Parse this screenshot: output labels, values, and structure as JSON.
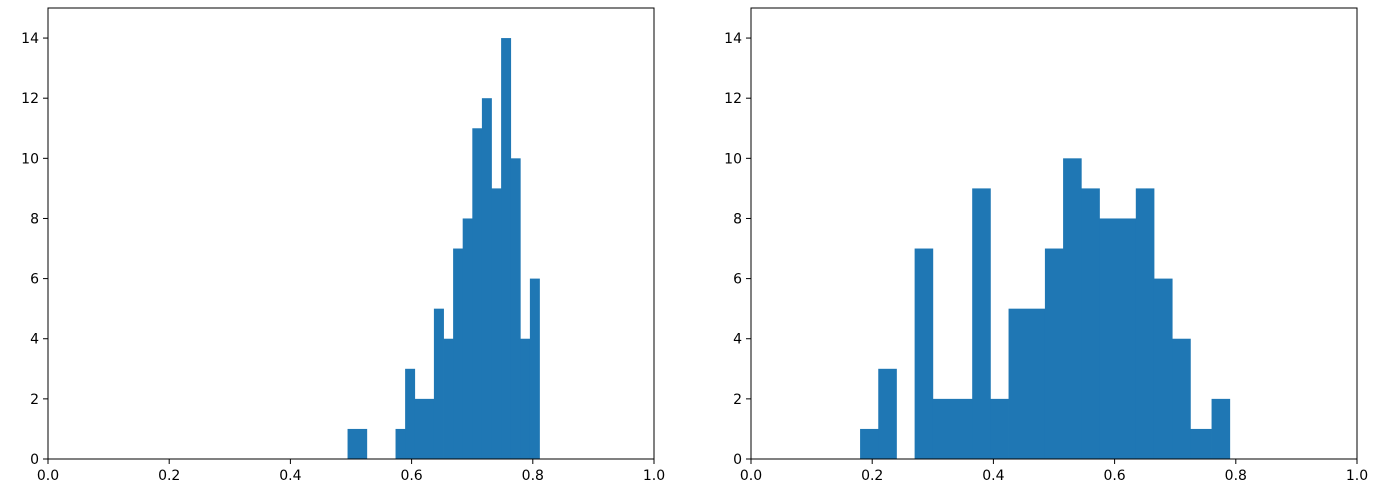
{
  "colors": {
    "bar": "#1f77b4",
    "axis": "#000000",
    "background": "#ffffff"
  },
  "chart_data": [
    {
      "type": "histogram",
      "xlim": [
        0.0,
        1.0
      ],
      "ylim": [
        0,
        15
      ],
      "xticks": [
        "0.0",
        "0.2",
        "0.4",
        "0.6",
        "0.8",
        "1.0"
      ],
      "yticks": [
        "0",
        "2",
        "4",
        "6",
        "8",
        "10",
        "12",
        "14"
      ],
      "grid": false,
      "bins": [
        {
          "x0": 0.4943,
          "x1": 0.526,
          "count": 1
        },
        {
          "x0": 0.5735,
          "x1": 0.5893,
          "count": 1
        },
        {
          "x0": 0.5893,
          "x1": 0.6051,
          "count": 3
        },
        {
          "x0": 0.6051,
          "x1": 0.6368,
          "count": 2
        },
        {
          "x0": 0.6368,
          "x1": 0.6527,
          "count": 5
        },
        {
          "x0": 0.6527,
          "x1": 0.6685,
          "count": 4
        },
        {
          "x0": 0.6685,
          "x1": 0.6843,
          "count": 7
        },
        {
          "x0": 0.6843,
          "x1": 0.7002,
          "count": 8
        },
        {
          "x0": 0.7002,
          "x1": 0.716,
          "count": 11
        },
        {
          "x0": 0.716,
          "x1": 0.7318,
          "count": 12
        },
        {
          "x0": 0.7318,
          "x1": 0.7477,
          "count": 9
        },
        {
          "x0": 0.7477,
          "x1": 0.7635,
          "count": 14
        },
        {
          "x0": 0.7635,
          "x1": 0.7793,
          "count": 10
        },
        {
          "x0": 0.7793,
          "x1": 0.7952,
          "count": 4
        },
        {
          "x0": 0.7952,
          "x1": 0.811,
          "count": 6
        }
      ]
    },
    {
      "type": "histogram",
      "xlim": [
        0.0,
        1.0
      ],
      "ylim": [
        0,
        15
      ],
      "xticks": [
        "0.0",
        "0.2",
        "0.4",
        "0.6",
        "0.8",
        "1.0"
      ],
      "yticks": [
        "0",
        "2",
        "4",
        "6",
        "8",
        "10",
        "12",
        "14"
      ],
      "grid": false,
      "bins": [
        {
          "x0": 0.18,
          "x1": 0.21,
          "count": 1
        },
        {
          "x0": 0.21,
          "x1": 0.24,
          "count": 3
        },
        {
          "x0": 0.27,
          "x1": 0.3,
          "count": 7
        },
        {
          "x0": 0.3,
          "x1": 0.365,
          "count": 2
        },
        {
          "x0": 0.365,
          "x1": 0.395,
          "count": 9
        },
        {
          "x0": 0.395,
          "x1": 0.425,
          "count": 2
        },
        {
          "x0": 0.425,
          "x1": 0.485,
          "count": 5
        },
        {
          "x0": 0.485,
          "x1": 0.515,
          "count": 7
        },
        {
          "x0": 0.515,
          "x1": 0.545,
          "count": 10
        },
        {
          "x0": 0.545,
          "x1": 0.575,
          "count": 9
        },
        {
          "x0": 0.575,
          "x1": 0.635,
          "count": 8
        },
        {
          "x0": 0.635,
          "x1": 0.665,
          "count": 9
        },
        {
          "x0": 0.665,
          "x1": 0.695,
          "count": 6
        },
        {
          "x0": 0.695,
          "x1": 0.725,
          "count": 4
        },
        {
          "x0": 0.725,
          "x1": 0.76,
          "count": 1
        },
        {
          "x0": 0.76,
          "x1": 0.79,
          "count": 2
        }
      ]
    }
  ]
}
